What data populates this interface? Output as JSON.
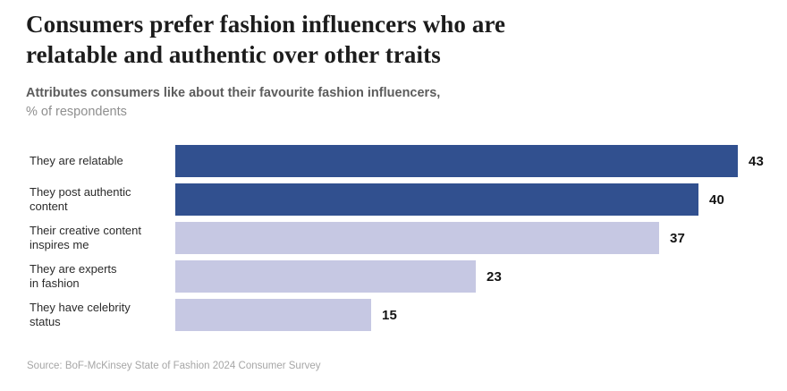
{
  "header": {
    "title_line1": "Consumers prefer fashion influencers who are",
    "title_line2": "relatable and authentic over other traits",
    "subtitle_line1": "Attributes consumers like about their favourite fashion influencers,",
    "subtitle_line2": "% of respondents"
  },
  "chart_data": {
    "type": "bar",
    "orientation": "horizontal",
    "title": "Consumers prefer fashion influencers who are relatable and authentic over other traits",
    "subtitle": "Attributes consumers like about their favourite fashion influencers, % of respondents",
    "categories": [
      "They are relatable",
      "They post authentic\ncontent",
      "Their creative content\ninspires me",
      "They are experts\nin fashion",
      "They have celebrity\nstatus"
    ],
    "values": [
      43,
      40,
      37,
      23,
      15
    ],
    "highlighted": [
      true,
      true,
      false,
      false,
      false
    ],
    "value_labels": [
      "43",
      "40",
      "37",
      "23",
      "15"
    ],
    "xlim": [
      0,
      45
    ],
    "unit": "% of respondents",
    "grid": false,
    "legend": "none",
    "colors": {
      "highlight": "#31508F",
      "default": "#C6C8E3"
    }
  },
  "footer": {
    "source": "Source: BoF-McKinsey State of Fashion 2024 Consumer Survey"
  }
}
